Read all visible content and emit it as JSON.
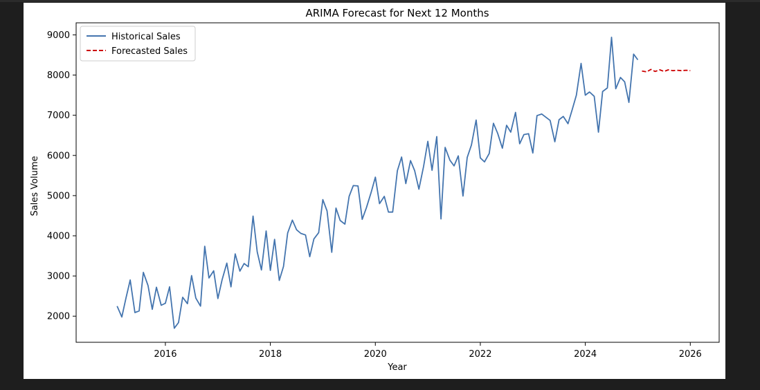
{
  "chart_data": {
    "type": "line",
    "title": "ARIMA Forecast for Next 12 Months",
    "xlabel": "Year",
    "ylabel": "Sales Volume",
    "xlim": [
      2014.3,
      2026.55
    ],
    "ylim": [
      1350,
      9300
    ],
    "xticks": [
      2016,
      2018,
      2020,
      2022,
      2024,
      2026
    ],
    "yticks": [
      2000,
      3000,
      4000,
      5000,
      6000,
      7000,
      8000,
      9000
    ],
    "grid": false,
    "legend_position": "top-left",
    "series": [
      {
        "name": "Historical Sales",
        "color": "#4374ae",
        "style": "solid",
        "x": [
          2015.08,
          2015.17,
          2015.25,
          2015.33,
          2015.42,
          2015.5,
          2015.58,
          2015.67,
          2015.75,
          2015.83,
          2015.92,
          2016.0,
          2016.08,
          2016.17,
          2016.25,
          2016.33,
          2016.42,
          2016.5,
          2016.58,
          2016.67,
          2016.75,
          2016.83,
          2016.92,
          2017.0,
          2017.08,
          2017.17,
          2017.25,
          2017.33,
          2017.42,
          2017.5,
          2017.58,
          2017.67,
          2017.75,
          2017.83,
          2017.92,
          2018.0,
          2018.08,
          2018.17,
          2018.25,
          2018.33,
          2018.42,
          2018.5,
          2018.58,
          2018.67,
          2018.75,
          2018.83,
          2018.92,
          2019.0,
          2019.08,
          2019.17,
          2019.25,
          2019.33,
          2019.42,
          2019.5,
          2019.58,
          2019.67,
          2019.75,
          2019.83,
          2019.92,
          2020.0,
          2020.08,
          2020.17,
          2020.25,
          2020.33,
          2020.42,
          2020.5,
          2020.58,
          2020.67,
          2020.75,
          2020.83,
          2020.92,
          2021.0,
          2021.08,
          2021.17,
          2021.25,
          2021.33,
          2021.42,
          2021.5,
          2021.58,
          2021.67,
          2021.75,
          2021.83,
          2021.92,
          2022.0,
          2022.08,
          2022.17,
          2022.25,
          2022.33,
          2022.42,
          2022.5,
          2022.58,
          2022.67,
          2022.75,
          2022.83,
          2022.92,
          2023.0,
          2023.08,
          2023.17,
          2023.25,
          2023.33,
          2023.42,
          2023.5,
          2023.58,
          2023.67,
          2023.75,
          2023.83,
          2023.92,
          2024.0,
          2024.08,
          2024.17,
          2024.25,
          2024.33,
          2024.42,
          2024.5,
          2024.58,
          2024.67,
          2024.75,
          2024.83,
          2024.92,
          2025.0
        ],
        "values": [
          2250,
          1980,
          2450,
          2900,
          2090,
          2130,
          3090,
          2760,
          2170,
          2720,
          2270,
          2320,
          2730,
          1700,
          1840,
          2470,
          2310,
          3010,
          2450,
          2250,
          3740,
          2950,
          3130,
          2440,
          2900,
          3320,
          2730,
          3550,
          3120,
          3310,
          3230,
          4490,
          3600,
          3150,
          4120,
          3140,
          3910,
          2890,
          3240,
          4070,
          4390,
          4150,
          4060,
          4020,
          3480,
          3920,
          4080,
          4900,
          4620,
          3590,
          4690,
          4380,
          4290,
          4980,
          5250,
          5240,
          4410,
          4700,
          5080,
          5460,
          4800,
          4980,
          4590,
          4590,
          5620,
          5960,
          5300,
          5870,
          5620,
          5160,
          5730,
          6350,
          5630,
          6470,
          4420,
          6200,
          5880,
          5740,
          5990,
          4990,
          5950,
          6260,
          6880,
          5940,
          5840,
          6050,
          6800,
          6550,
          6180,
          6750,
          6580,
          7070,
          6290,
          6520,
          6540,
          6060,
          6990,
          7030,
          6950,
          6870,
          6340,
          6890,
          6970,
          6790,
          7140,
          7500,
          8290,
          7500,
          7580,
          7470,
          6580,
          7590,
          7680,
          8940,
          7660,
          7940,
          7830,
          7320,
          8520,
          8380
        ]
      },
      {
        "name": "Forecasted Sales",
        "color": "#cc0000",
        "style": "dashed",
        "x": [
          2025.08,
          2025.17,
          2025.25,
          2025.33,
          2025.42,
          2025.5,
          2025.58,
          2025.67,
          2025.75,
          2025.83,
          2025.92,
          2026.0
        ],
        "values": [
          8100,
          8080,
          8140,
          8090,
          8130,
          8090,
          8130,
          8110,
          8120,
          8110,
          8120,
          8110
        ]
      }
    ]
  }
}
